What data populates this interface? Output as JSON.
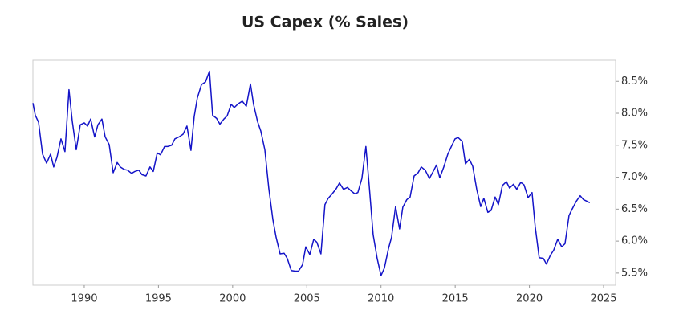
{
  "chart_data": {
    "type": "line",
    "title": "US Capex (% Sales)",
    "color": "#1414c8",
    "x": [
      1986.54,
      1986.7,
      1986.92,
      1987.19,
      1987.46,
      1987.73,
      1987.94,
      1988.16,
      1988.43,
      1988.7,
      1988.97,
      1989.19,
      1989.46,
      1989.73,
      1990.0,
      1990.22,
      1990.43,
      1990.7,
      1990.92,
      1991.19,
      1991.41,
      1991.68,
      1991.95,
      1992.22,
      1992.43,
      1992.7,
      1992.92,
      1993.19,
      1993.41,
      1993.68,
      1993.89,
      1994.16,
      1994.43,
      1994.65,
      1994.92,
      1995.14,
      1995.41,
      1995.62,
      1995.89,
      1996.11,
      1996.38,
      1996.65,
      1996.92,
      1997.19,
      1997.41,
      1997.62,
      1997.9,
      1998.17,
      1998.44,
      1998.65,
      1998.92,
      1999.14,
      1999.41,
      1999.63,
      1999.9,
      2000.11,
      2000.38,
      2000.65,
      2000.92,
      2001.2,
      2001.41,
      2001.68,
      2001.9,
      2002.17,
      2002.44,
      2002.71,
      2002.93,
      2003.2,
      2003.47,
      2003.68,
      2003.95,
      2004.22,
      2004.44,
      2004.71,
      2004.93,
      2005.2,
      2005.47,
      2005.68,
      2005.95,
      2006.22,
      2006.44,
      2006.71,
      2006.98,
      2007.2,
      2007.47,
      2007.74,
      2007.96,
      2008.23,
      2008.44,
      2008.71,
      2008.98,
      2009.2,
      2009.47,
      2009.74,
      2010.0,
      2010.23,
      2010.5,
      2010.71,
      2010.98,
      2011.25,
      2011.47,
      2011.74,
      2011.96,
      2012.23,
      2012.5,
      2012.71,
      2012.98,
      2013.26,
      2013.47,
      2013.74,
      2013.96,
      2014.23,
      2014.5,
      2014.72,
      2014.99,
      2015.2,
      2015.47,
      2015.69,
      2015.96,
      2016.18,
      2016.45,
      2016.72,
      2016.93,
      2017.2,
      2017.42,
      2017.69,
      2017.91,
      2018.18,
      2018.45,
      2018.66,
      2018.93,
      2019.15,
      2019.42,
      2019.64,
      2019.91,
      2020.18,
      2020.39,
      2020.66,
      2020.94,
      2021.15,
      2021.42,
      2021.64,
      2021.91,
      2022.18,
      2022.4,
      2022.67,
      2022.88,
      2023.15,
      2023.42,
      2023.64,
      2023.91,
      2024.07
    ],
    "values": [
      8.16,
      7.97,
      7.86,
      7.36,
      7.22,
      7.36,
      7.16,
      7.31,
      7.6,
      7.4,
      8.37,
      7.88,
      7.43,
      7.82,
      7.85,
      7.8,
      7.91,
      7.63,
      7.82,
      7.91,
      7.63,
      7.51,
      7.07,
      7.23,
      7.16,
      7.12,
      7.11,
      7.06,
      7.09,
      7.11,
      7.04,
      7.02,
      7.16,
      7.09,
      7.38,
      7.35,
      7.48,
      7.48,
      7.5,
      7.6,
      7.63,
      7.67,
      7.8,
      7.42,
      7.95,
      8.24,
      8.45,
      8.49,
      8.66,
      7.97,
      7.92,
      7.83,
      7.91,
      7.96,
      8.14,
      8.09,
      8.15,
      8.19,
      8.11,
      8.46,
      8.14,
      7.87,
      7.72,
      7.43,
      6.82,
      6.34,
      6.06,
      5.8,
      5.81,
      5.73,
      5.54,
      5.53,
      5.53,
      5.63,
      5.91,
      5.79,
      6.03,
      5.98,
      5.8,
      6.57,
      6.67,
      6.74,
      6.82,
      6.91,
      6.81,
      6.84,
      6.79,
      6.74,
      6.76,
      6.98,
      7.48,
      6.88,
      6.1,
      5.73,
      5.46,
      5.58,
      5.88,
      6.06,
      6.54,
      6.19,
      6.53,
      6.65,
      6.69,
      7.02,
      7.07,
      7.16,
      7.11,
      6.98,
      7.07,
      7.19,
      6.99,
      7.16,
      7.36,
      7.47,
      7.6,
      7.62,
      7.56,
      7.21,
      7.28,
      7.17,
      6.81,
      6.54,
      6.67,
      6.45,
      6.48,
      6.69,
      6.57,
      6.87,
      6.93,
      6.83,
      6.89,
      6.81,
      6.92,
      6.88,
      6.68,
      6.76,
      6.23,
      5.74,
      5.73,
      5.64,
      5.78,
      5.86,
      6.03,
      5.91,
      5.96,
      6.4,
      6.5,
      6.62,
      6.71,
      6.65,
      6.62,
      6.6
    ],
    "xlim": [
      1986.54,
      2025.81
    ],
    "xticks": [
      1990,
      1995,
      2000,
      2005,
      2010,
      2015,
      2020,
      2025
    ],
    "ylim": [
      5.31,
      8.83
    ],
    "yticks": [
      {
        "value": 5.5,
        "label": "5.5%"
      },
      {
        "value": 6,
        "label": "6.0%"
      },
      {
        "value": 6.5,
        "label": "6.5%"
      },
      {
        "value": 7,
        "label": "7.0%"
      },
      {
        "value": 7.5,
        "label": "7.5%"
      },
      {
        "value": 8,
        "label": "8.0%"
      },
      {
        "value": 8.5,
        "label": "8.5%"
      }
    ]
  }
}
